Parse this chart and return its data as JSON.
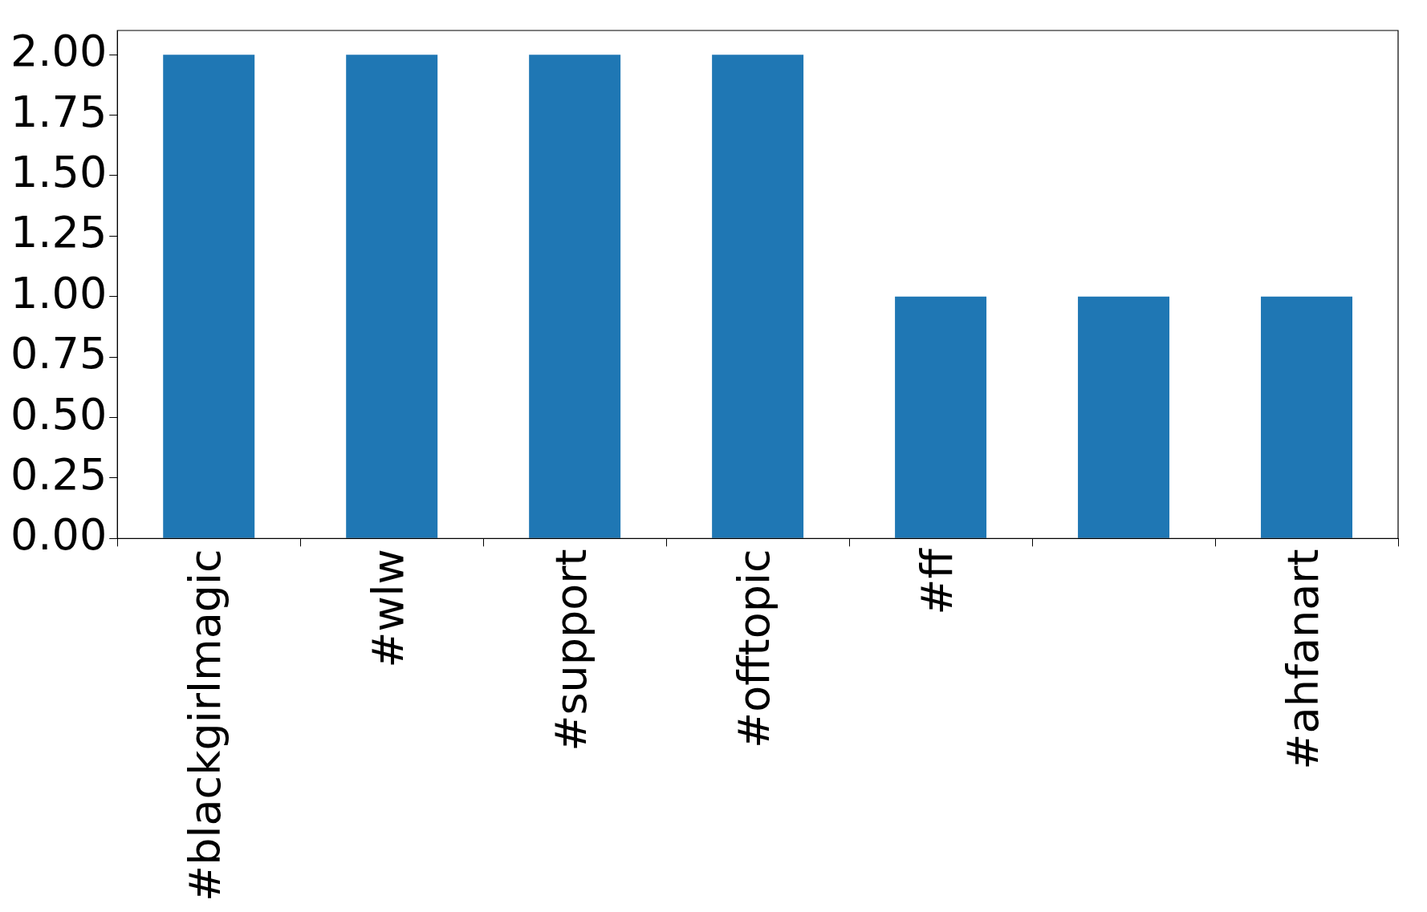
{
  "chart_data": {
    "type": "bar",
    "categories": [
      "#blackgirlmagic",
      "#wlw",
      "#support",
      "#offtopic",
      "#ff",
      null,
      "#ahfanart"
    ],
    "values": [
      2,
      2,
      2,
      2,
      1,
      1,
      1
    ],
    "color": "#1f77b4",
    "ylim": [
      0,
      2.1
    ],
    "yticks": [
      {
        "value": 0,
        "label": "0.00"
      },
      {
        "value": 0.25,
        "label": "0.25"
      },
      {
        "value": 0.5,
        "label": "0.50"
      },
      {
        "value": 0.75,
        "label": "0.75"
      },
      {
        "value": 1,
        "label": "1.00"
      },
      {
        "value": 1.25,
        "label": "1.25"
      },
      {
        "value": 1.5,
        "label": "1.50"
      },
      {
        "value": 1.75,
        "label": "1.75"
      },
      {
        "value": 2,
        "label": "2.00"
      }
    ],
    "grid": false,
    "legend": false
  }
}
